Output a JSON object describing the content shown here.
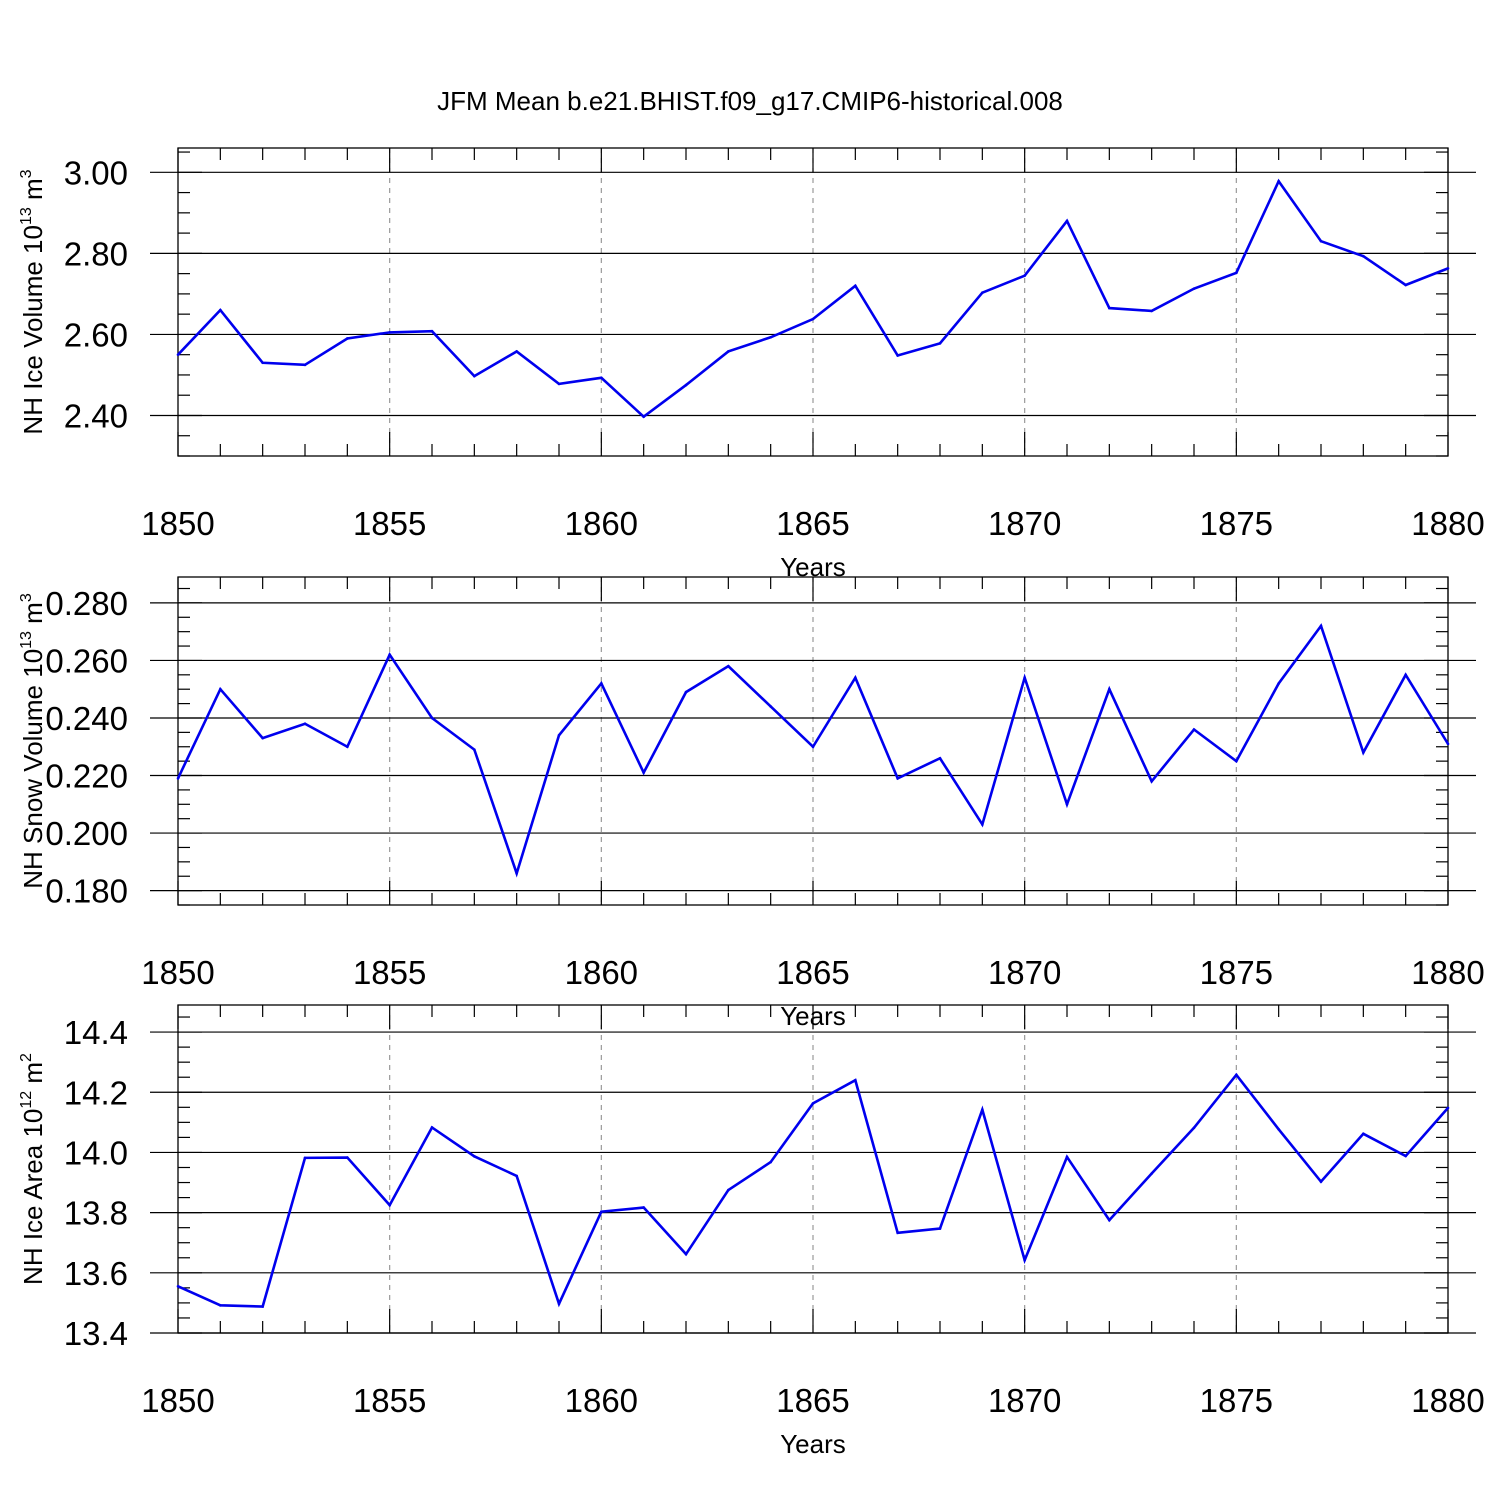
{
  "title": "JFM Mean b.e21.BHIST.f09_g17.CMIP6-historical.008",
  "colors": {
    "line": "#0000ee",
    "axis": "#000000",
    "grid": "#9a9a9a",
    "background": "#ffffff"
  },
  "chart_data": [
    {
      "type": "line",
      "xlabel": "Years",
      "ylabel": "NH Ice Volume 10",
      "ylabel_exp": "13",
      "ylabel_unit": " m",
      "ylabel_unit_exp": "3",
      "xlim": [
        1850,
        1880
      ],
      "ylim": [
        2.3,
        3.06
      ],
      "xticks": [
        1850,
        1855,
        1860,
        1865,
        1870,
        1875,
        1880
      ],
      "yticks": [
        2.4,
        2.6,
        2.8,
        3.0
      ],
      "ytick_labels": [
        "2.40",
        "2.60",
        "2.80",
        "3.00"
      ],
      "grid": "vertical dashed at major x ticks",
      "series": [
        {
          "x": [
            1850,
            1851,
            1852,
            1853,
            1854,
            1855,
            1856,
            1857,
            1858,
            1859,
            1860,
            1861,
            1862,
            1863,
            1864,
            1865,
            1866,
            1867,
            1868,
            1869,
            1870,
            1871,
            1872,
            1873,
            1874,
            1875,
            1876,
            1877,
            1878,
            1879,
            1880
          ],
          "values": [
            2.55,
            2.66,
            2.53,
            2.525,
            2.59,
            2.605,
            2.608,
            2.497,
            2.558,
            2.478,
            2.493,
            2.397,
            2.475,
            2.558,
            2.593,
            2.638,
            2.72,
            2.548,
            2.578,
            2.703,
            2.745,
            2.88,
            2.665,
            2.658,
            2.713,
            2.752,
            2.978,
            2.83,
            2.793,
            2.722,
            2.763
          ]
        }
      ]
    },
    {
      "type": "line",
      "xlabel": "Years",
      "ylabel": "NH Snow Volume 10",
      "ylabel_exp": "13",
      "ylabel_unit": " m",
      "ylabel_unit_exp": "3",
      "xlim": [
        1850,
        1880
      ],
      "ylim": [
        0.175,
        0.289
      ],
      "xticks": [
        1850,
        1855,
        1860,
        1865,
        1870,
        1875,
        1880
      ],
      "yticks": [
        0.18,
        0.2,
        0.22,
        0.24,
        0.26,
        0.28
      ],
      "ytick_labels": [
        "0.180",
        "0.200",
        "0.220",
        "0.240",
        "0.260",
        "0.280"
      ],
      "grid": "vertical dashed at major x ticks",
      "series": [
        {
          "x": [
            1850,
            1851,
            1852,
            1853,
            1854,
            1855,
            1856,
            1857,
            1858,
            1859,
            1860,
            1861,
            1862,
            1863,
            1864,
            1865,
            1866,
            1867,
            1868,
            1869,
            1870,
            1871,
            1872,
            1873,
            1874,
            1875,
            1876,
            1877,
            1878,
            1879,
            1880
          ],
          "values": [
            0.219,
            0.25,
            0.233,
            0.238,
            0.23,
            0.262,
            0.24,
            0.229,
            0.186,
            0.234,
            0.252,
            0.221,
            0.249,
            0.258,
            0.244,
            0.23,
            0.254,
            0.219,
            0.226,
            0.203,
            0.254,
            0.21,
            0.25,
            0.218,
            0.236,
            0.225,
            0.252,
            0.272,
            0.228,
            0.255,
            0.231
          ]
        }
      ]
    },
    {
      "type": "line",
      "xlabel": "Years",
      "ylabel": "NH Ice Area 10",
      "ylabel_exp": "12",
      "ylabel_unit": " m",
      "ylabel_unit_exp": "2",
      "xlim": [
        1850,
        1880
      ],
      "ylim": [
        13.4,
        14.49
      ],
      "xticks": [
        1850,
        1855,
        1860,
        1865,
        1870,
        1875,
        1880
      ],
      "yticks": [
        13.4,
        13.6,
        13.8,
        14.0,
        14.2,
        14.4
      ],
      "ytick_labels": [
        "13.4",
        "13.6",
        "13.8",
        "14.0",
        "14.2",
        "14.4"
      ],
      "grid": "vertical dashed at major x ticks",
      "series": [
        {
          "x": [
            1850,
            1851,
            1852,
            1853,
            1854,
            1855,
            1856,
            1857,
            1858,
            1859,
            1860,
            1861,
            1862,
            1863,
            1864,
            1865,
            1866,
            1867,
            1868,
            1869,
            1870,
            1871,
            1872,
            1873,
            1874,
            1875,
            1876,
            1877,
            1878,
            1879,
            1880
          ],
          "values": [
            13.555,
            13.492,
            13.488,
            13.982,
            13.983,
            13.825,
            14.083,
            13.987,
            13.922,
            13.497,
            13.803,
            13.817,
            13.662,
            13.875,
            13.968,
            14.163,
            14.24,
            13.733,
            13.747,
            14.142,
            13.642,
            13.985,
            13.775,
            13.93,
            14.082,
            14.258,
            14.077,
            13.903,
            14.062,
            13.988,
            14.148
          ]
        }
      ]
    }
  ]
}
